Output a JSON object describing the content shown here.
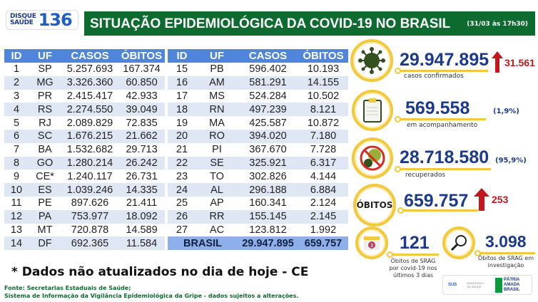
{
  "logo": {
    "line1": "DISQUE",
    "line2": "SAÚDE",
    "number": "136"
  },
  "header": {
    "title": "SITUAÇÃO EPIDEMIOLÓGICA DA COVID-19 NO BRASIL",
    "date": "(31/03 às 17h30)"
  },
  "table": {
    "columns": [
      "ID",
      "UF",
      "CASOS",
      "ÓBITOS"
    ],
    "left_rows": [
      [
        "1",
        "SP",
        "5.257.693",
        "167.374"
      ],
      [
        "2",
        "MG",
        "3.326.360",
        "60.850"
      ],
      [
        "3",
        "PR",
        "2.415.417",
        "42.933"
      ],
      [
        "4",
        "RS",
        "2.274.550",
        "39.049"
      ],
      [
        "5",
        "RJ",
        "2.089.829",
        "72.835"
      ],
      [
        "6",
        "SC",
        "1.676.215",
        "21.662"
      ],
      [
        "7",
        "BA",
        "1.532.682",
        "29.713"
      ],
      [
        "8",
        "GO",
        "1.280.214",
        "26.242"
      ],
      [
        "9",
        "CE*",
        "1.240.117",
        "26.731"
      ],
      [
        "10",
        "ES",
        "1.039.246",
        "14.335"
      ],
      [
        "11",
        "PE",
        "897.626",
        "21.411"
      ],
      [
        "12",
        "PA",
        "753.977",
        "18.092"
      ],
      [
        "13",
        "MT",
        "720.878",
        "14.589"
      ],
      [
        "14",
        "DF",
        "692.365",
        "11.584"
      ]
    ],
    "right_rows": [
      [
        "15",
        "PB",
        "596.402",
        "10.193"
      ],
      [
        "16",
        "AM",
        "581.291",
        "14.155"
      ],
      [
        "17",
        "MS",
        "524.284",
        "10.502"
      ],
      [
        "18",
        "RN",
        "497.239",
        "8.121"
      ],
      [
        "19",
        "MA",
        "425.587",
        "10.872"
      ],
      [
        "20",
        "RO",
        "394.020",
        "7.180"
      ],
      [
        "21",
        "PI",
        "367.670",
        "7.728"
      ],
      [
        "22",
        "SE",
        "325.921",
        "6.317"
      ],
      [
        "23",
        "TO",
        "302.826",
        "4.144"
      ],
      [
        "24",
        "AL",
        "296.188",
        "6.884"
      ],
      [
        "25",
        "AP",
        "160.341",
        "2.124"
      ],
      [
        "26",
        "RR",
        "155.145",
        "2.145"
      ],
      [
        "27",
        "AC",
        "123.812",
        "1.992"
      ]
    ],
    "total": {
      "label": "BRASIL",
      "casos": "29.947.895",
      "obitos": "659.757"
    }
  },
  "stats": {
    "confirmed": {
      "value": "29.947.895",
      "label": "casos confirmados",
      "increase": "31.561",
      "icon": "virus-icon"
    },
    "monitoring": {
      "value": "569.558",
      "pct": "(1,9%)",
      "label": "em acompanhamento",
      "icon": "clipboard-icon"
    },
    "recovered": {
      "value": "28.718.580",
      "pct": "(95,9%)",
      "label": "recuperados",
      "icon": "no-virus-icon"
    },
    "deaths": {
      "title": "ÓBITOS",
      "value": "659.757",
      "increase": "253"
    },
    "srag_recent": {
      "value": "121",
      "label": "Óbitos de SRAG por covid-19 nos últimos 3 dias",
      "calendar_day": "3"
    },
    "srag_investigation": {
      "value": "3.098",
      "label": "Óbitos de SRAG em investigação"
    }
  },
  "note": "* Dados não atualizados no dia de hoje - CE",
  "source": {
    "line1": "Fonte: Secretarias Estaduais de Saúde;",
    "line2": "Sistema de Informação da Vigilância Epidemiológica da Gripe - dados sujeitos a alterações."
  },
  "footer_logos": {
    "sus": "SUS",
    "ministry": "MINISTÉRIO DA SAÚDE",
    "gov": "PÁTRIA AMADA BRASIL"
  },
  "colors": {
    "green": "#0d6b2f",
    "blue_header": "#4f86dc",
    "navy": "#1c3a8c",
    "red": "#c4161c",
    "yellow": "#f3c83a"
  }
}
